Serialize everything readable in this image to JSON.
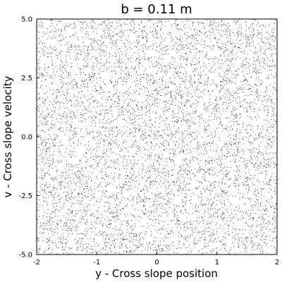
{
  "chart_data": {
    "type": "scatter",
    "title": "b = 0.11 m",
    "xlabel": "y - Cross slope position",
    "ylabel": "v - Cross slope velocity",
    "xlim": [
      -2,
      2
    ],
    "ylim": [
      -5,
      5
    ],
    "xticks": [
      {
        "value": -2,
        "label": "-2"
      },
      {
        "value": -1,
        "label": "-1"
      },
      {
        "value": 0,
        "label": "0"
      },
      {
        "value": 1,
        "label": "1"
      },
      {
        "value": 2,
        "label": "2"
      }
    ],
    "yticks": [
      {
        "value": -5,
        "label": "-5.0"
      },
      {
        "value": -2.5,
        "label": "-2.5"
      },
      {
        "value": 0,
        "label": "0.0"
      },
      {
        "value": 2.5,
        "label": "2.5"
      },
      {
        "value": 5,
        "label": "5.0"
      }
    ],
    "grid": false,
    "legend": "none",
    "marker_color": "#000000",
    "frame_color": "#000000",
    "background": "#ffffff",
    "series": [
      {
        "distribution": "approximately uniform random dots filling the full axes area",
        "x_range": [
          -2,
          2
        ],
        "y_range": [
          -5,
          5
        ],
        "approx_point_count": 6000
      }
    ]
  }
}
